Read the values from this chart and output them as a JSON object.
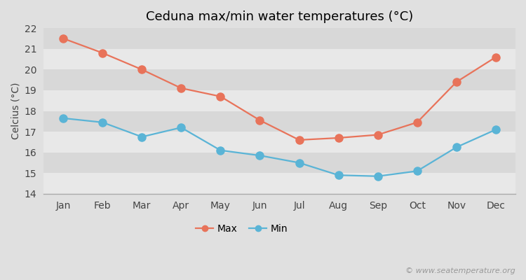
{
  "title": "Ceduna max/min water temperatures (°C)",
  "ylabel": "Celcius (°C)",
  "months": [
    "Jan",
    "Feb",
    "Mar",
    "Apr",
    "May",
    "Jun",
    "Jul",
    "Aug",
    "Sep",
    "Oct",
    "Nov",
    "Dec"
  ],
  "max_values": [
    21.5,
    20.8,
    20.0,
    19.1,
    18.7,
    17.55,
    16.6,
    16.7,
    16.85,
    17.45,
    19.4,
    20.6
  ],
  "min_values": [
    17.65,
    17.45,
    16.75,
    17.2,
    16.1,
    15.85,
    15.5,
    14.9,
    14.85,
    15.1,
    16.25,
    17.1
  ],
  "max_color": "#e8735a",
  "min_color": "#5ab4d6",
  "band_colors": [
    "#e8e8e8",
    "#d8d8d8"
  ],
  "figure_bg": "#e0e0e0",
  "ylim": [
    14,
    22
  ],
  "yticks": [
    14,
    15,
    16,
    17,
    18,
    19,
    20,
    21,
    22
  ],
  "legend_labels": [
    "Max",
    "Min"
  ],
  "watermark": "© www.seatemperature.org",
  "marker": "o",
  "markersize": 8,
  "linewidth": 1.6,
  "title_fontsize": 13,
  "label_fontsize": 10,
  "tick_fontsize": 10,
  "watermark_fontsize": 8
}
